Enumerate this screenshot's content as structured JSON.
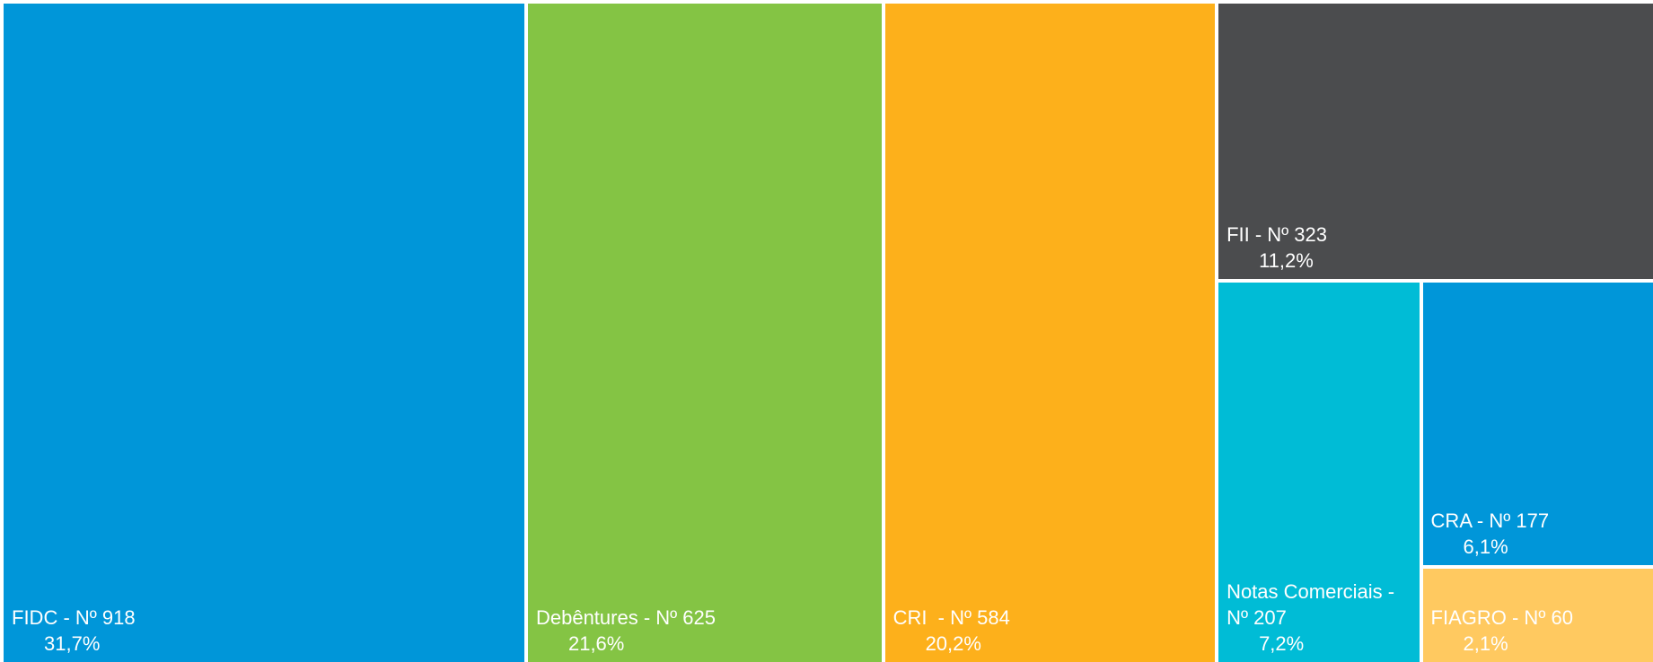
{
  "chart_data": {
    "type": "treemap",
    "items": [
      {
        "name": "FIDC",
        "label": "FIDC - Nº 918",
        "count": 918,
        "percent": 31.7,
        "percent_label": "31,7%",
        "color": "#0096D9"
      },
      {
        "name": "Debêntures",
        "label": "Debêntures - Nº 625",
        "count": 625,
        "percent": 21.6,
        "percent_label": "21,6%",
        "color": "#84C444"
      },
      {
        "name": "CRI",
        "label": "CRI  - Nº 584",
        "count": 584,
        "percent": 20.2,
        "percent_label": "20,2%",
        "color": "#FDB01B"
      },
      {
        "name": "FII",
        "label": "FII - Nº 323",
        "count": 323,
        "percent": 11.2,
        "percent_label": "11,2%",
        "color": "#4B4C4E"
      },
      {
        "name": "Notas Comerciais",
        "label": "Notas Comerciais - Nº 207",
        "count": 207,
        "percent": 7.2,
        "percent_label": "7,2%",
        "color": "#00BCD6"
      },
      {
        "name": "CRA",
        "label": "CRA - Nº 177",
        "count": 177,
        "percent": 6.1,
        "percent_label": "6,1%",
        "color": "#0096D9"
      },
      {
        "name": "FIAGRO",
        "label": "FIAGRO - Nº 60",
        "count": 60,
        "percent": 2.1,
        "percent_label": "2,1%",
        "color": "#FFC960"
      }
    ]
  }
}
